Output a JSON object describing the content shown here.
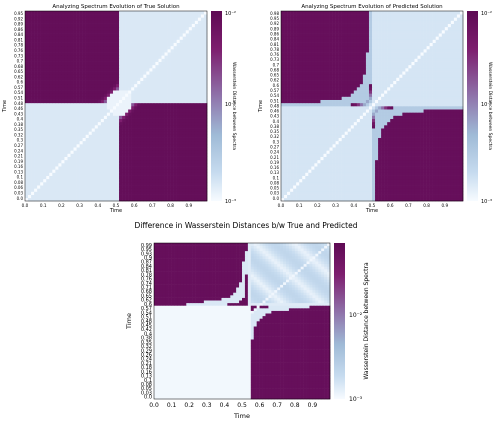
{
  "chart_data": [
    {
      "type": "heatmap",
      "title": "Analyzing Spectrum Evolution of True Solution",
      "xlabel": "Time",
      "ylabel": "Time",
      "colorbar_label": "Wasserstein Distance between Spectra",
      "colorbar_scale": "log",
      "colorbar_ticks": [
        "10⁻²",
        "10⁻³"
      ],
      "colormap": [
        "#f7fbff",
        "#c6dbef",
        "#9fbad6",
        "#8f74ab",
        "#7d1e6e",
        "#5e0a54"
      ],
      "xlim": [
        0,
        1
      ],
      "ylim": [
        0,
        0.99
      ],
      "x_ticks": [
        "0.0",
        "0.1",
        "0.2",
        "0.3",
        "0.4",
        "0.5",
        "0.6",
        "0.7",
        "0.8",
        "0.9"
      ],
      "y_ticks": [
        "0.0",
        "0.03",
        "0.06",
        "0.08",
        "0.1",
        "0.13",
        "0.16",
        "0.19",
        "0.21",
        "0.24",
        "0.27",
        "0.3",
        "0.32",
        "0.35",
        "0.38",
        "0.4",
        "0.43",
        "0.46",
        "0.48",
        "0.51",
        "0.54",
        "0.57",
        "0.6",
        "0.62",
        "0.65",
        "0.68",
        "0.7",
        "0.73",
        "0.76",
        "0.78",
        "0.81",
        "0.84",
        "0.86",
        "0.89",
        "0.92",
        "0.95"
      ],
      "pattern": "true"
    },
    {
      "type": "heatmap",
      "title": "Analyzing Spectrum Evolution of Predicted Solution",
      "xlabel": "Time",
      "ylabel": "Time",
      "colorbar_label": "Wasserstein Distance between Spectra",
      "colorbar_scale": "log",
      "colorbar_ticks": [
        "10⁻²",
        "10⁻³"
      ],
      "colormap": [
        "#f7fbff",
        "#c6dbef",
        "#9fbad6",
        "#8f74ab",
        "#7d1e6e",
        "#5e0a54"
      ],
      "xlim": [
        0,
        1
      ],
      "ylim": [
        0,
        0.99
      ],
      "x_ticks": [
        "0.0",
        "0.1",
        "0.2",
        "0.3",
        "0.4",
        "0.5",
        "0.6",
        "0.7",
        "0.8",
        "0.9"
      ],
      "y_ticks": [
        "0.0",
        "0.03",
        "0.05",
        "0.08",
        "0.1",
        "0.13",
        "0.16",
        "0.19",
        "0.21",
        "0.24",
        "0.27",
        "0.3",
        "0.32",
        "0.35",
        "0.38",
        "0.4",
        "0.43",
        "0.46",
        "0.48",
        "0.51",
        "0.54",
        "0.57",
        "0.6",
        "0.62",
        "0.65",
        "0.68",
        "0.7",
        "0.73",
        "0.76",
        "0.78",
        "0.81",
        "0.84",
        "0.86",
        "0.89",
        "0.92",
        "0.95",
        "0.98"
      ],
      "pattern": "pred"
    },
    {
      "type": "heatmap",
      "title": "Difference in Wasserstein Distances b/w True and Predicted",
      "xlabel": "Time",
      "ylabel": "Time",
      "colorbar_label": "Wasserstein Distance between Spectra",
      "colorbar_scale": "log",
      "colorbar_ticks": [
        "10⁻²",
        "10⁻³"
      ],
      "colormap": [
        "#f7fbff",
        "#c6dbef",
        "#9fbad6",
        "#8f74ab",
        "#7d1e6e",
        "#5e0a54"
      ],
      "xlim": [
        0,
        1
      ],
      "ylim": [
        0,
        0.99
      ],
      "x_ticks": [
        "0.0",
        "0.1",
        "0.2",
        "0.3",
        "0.4",
        "0.5",
        "0.6",
        "0.7",
        "0.8",
        "0.9"
      ],
      "y_ticks": [
        "0.0",
        "0.03",
        "0.05",
        "0.08",
        "0.1",
        "0.13",
        "0.16",
        "0.18",
        "0.21",
        "0.24",
        "0.26",
        "0.29",
        "0.32",
        "0.35",
        "0.38",
        "0.4",
        "0.42",
        "0.45",
        "0.48",
        "0.51",
        "0.54",
        "0.57",
        "0.6",
        "0.62",
        "0.65",
        "0.68",
        "0.71",
        "0.74",
        "0.76",
        "0.78",
        "0.81",
        "0.84",
        "0.87",
        "0.9",
        "0.93",
        "0.95",
        "0.99"
      ],
      "pattern": "diff"
    }
  ]
}
